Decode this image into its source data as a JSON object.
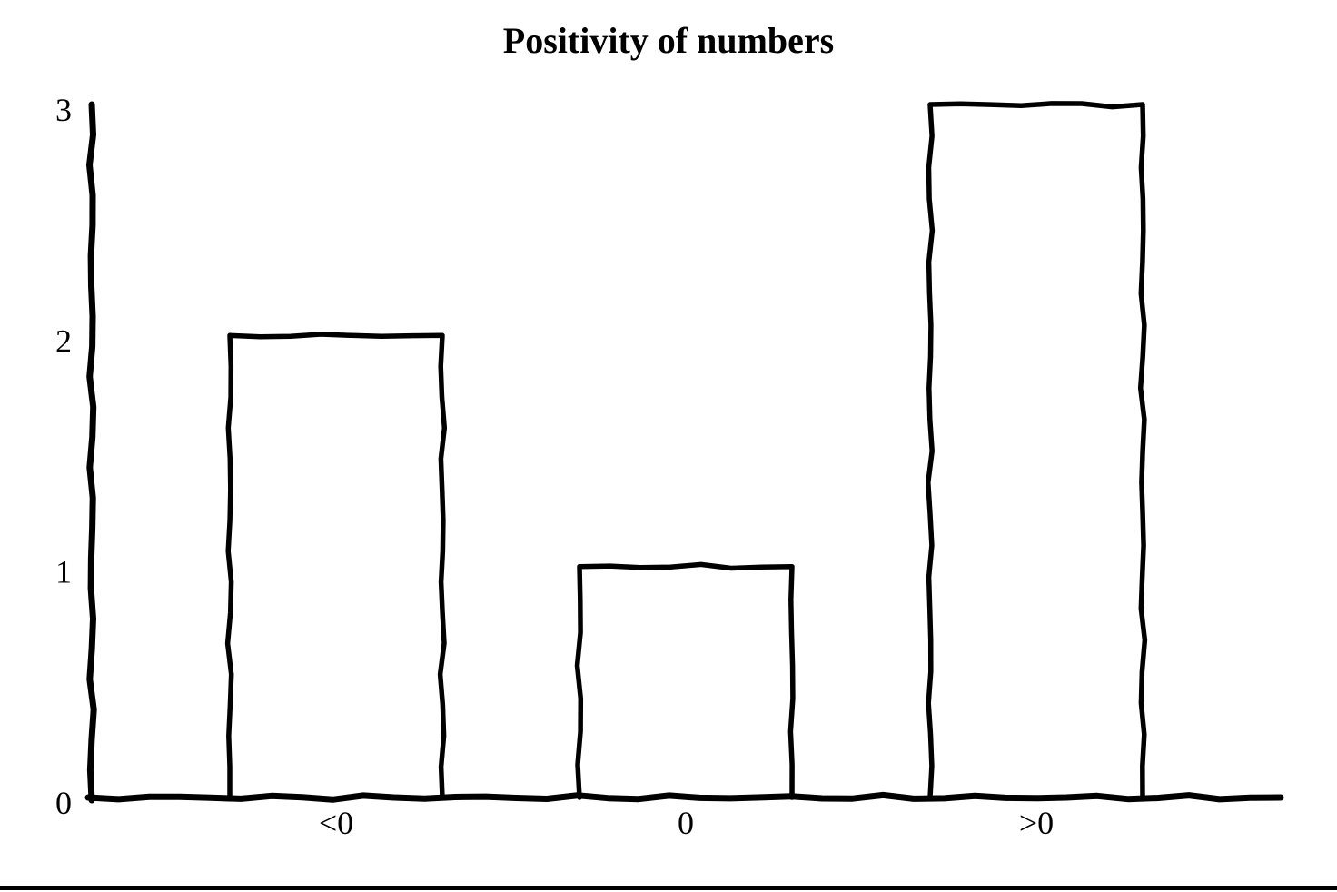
{
  "figure": {
    "background": "#ffffff",
    "stroke_color": "#000000",
    "bottom_rule_color": "#000000"
  },
  "chart_data": {
    "type": "bar",
    "title": "Positivity of numbers",
    "categories": [
      "<0",
      "0",
      ">0"
    ],
    "values": [
      2,
      1,
      3
    ],
    "xlabel": "",
    "ylabel": "",
    "yticks": [
      0,
      1,
      2,
      3
    ],
    "ylim": [
      0,
      3
    ],
    "grid": false,
    "legend": "none",
    "style": "hand-drawn-sketch",
    "bar_fill": "#ffffff",
    "bar_stroke": "#000000"
  }
}
